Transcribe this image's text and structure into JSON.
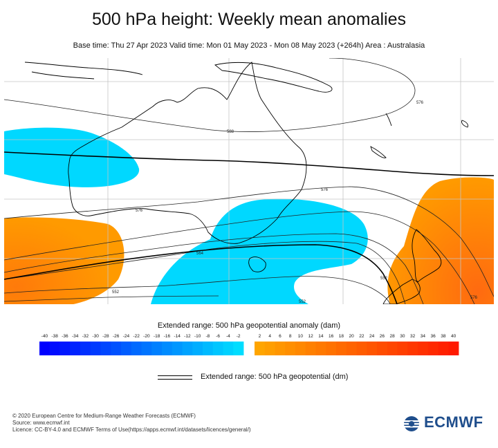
{
  "title": "500 hPa height: Weekly mean anomalies",
  "subtitle": "Base time: Thu 27 Apr 2023 Valid time: Mon 01 May 2023 - Mon 08 May 2023 (+264h) Area : Australasia",
  "map": {
    "contour_labels": [
      "588",
      "576",
      "576",
      "564",
      "552",
      "552",
      "552",
      "576",
      "576"
    ],
    "colors": {
      "negative_anomaly": "#00d8ff",
      "positive_anomaly": "#ff9a00",
      "strong_positive": "#ff6a10",
      "coast": "#000000",
      "grid": "#bdbdbd",
      "contour": "#222222"
    }
  },
  "anomaly_legend": {
    "title": "Extended range: 500 hPa geopotential anomaly (dam)",
    "negative_ticks": [
      "-40",
      "-38",
      "-36",
      "-34",
      "-32",
      "-30",
      "-28",
      "-26",
      "-24",
      "-22",
      "-20",
      "-18",
      "-16",
      "-14",
      "-12",
      "-10",
      "-8",
      "-6",
      "-4",
      "-2"
    ],
    "positive_ticks": [
      "2",
      "4",
      "6",
      "8",
      "10",
      "12",
      "14",
      "16",
      "18",
      "20",
      "22",
      "24",
      "26",
      "28",
      "30",
      "32",
      "34",
      "36",
      "38",
      "40"
    ],
    "negative_from": "#0000ff",
    "negative_to": "#00ddff",
    "positive_from": "#ffa500",
    "positive_to": "#ff1a00"
  },
  "line_legend": {
    "label": "Extended range: 500 hPa geopotential (dm)"
  },
  "footer": {
    "copyright": "© 2020 European Centre for Medium-Range Weather Forecasts (ECMWF)",
    "source": "Source: www.ecmwf.int",
    "licence": "Licence: CC-BY-4.0 and ECMWF Terms of Use(https://apps.ecmwf.int/datasets/licences/general/)"
  },
  "logo": {
    "text": "ECMWF",
    "color": "#1f4e8c"
  }
}
